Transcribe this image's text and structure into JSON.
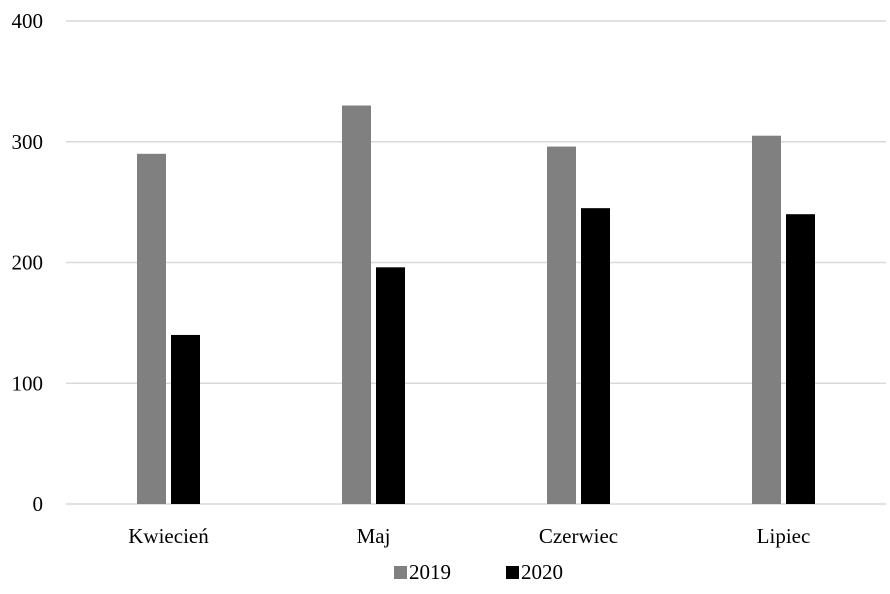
{
  "chart_data": {
    "type": "bar",
    "title": "",
    "xlabel": "",
    "ylabel": "",
    "categories": [
      "Kwiecień",
      "Maj",
      "Czerwiec",
      "Lipiec"
    ],
    "series": [
      {
        "name": "2019",
        "values": [
          290,
          330,
          296,
          305
        ],
        "color": "#808080"
      },
      {
        "name": "2020",
        "values": [
          140,
          196,
          245,
          240
        ],
        "color": "#000000"
      }
    ],
    "ylim": [
      0,
      400
    ],
    "yticks": [
      "0",
      "100",
      "200",
      "300",
      "400"
    ],
    "grid": true,
    "legend": "bottom-center"
  }
}
